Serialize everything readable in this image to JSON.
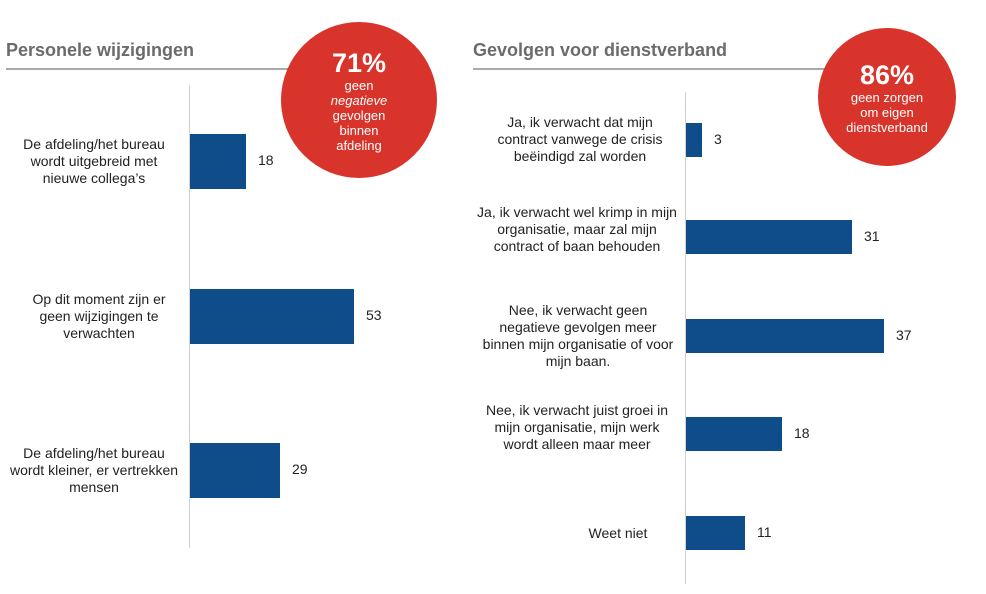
{
  "colors": {
    "bar": "#0f4c8a",
    "bubble": "#d9342b"
  },
  "left": {
    "title": "Personele wijzigingen",
    "bubble": {
      "value": "71%",
      "line1": "geen",
      "line2": "negatieve",
      "line3": "gevolgen\nbinnen\nafdeling"
    }
  },
  "right": {
    "title": "Gevolgen voor dienstverband",
    "bubble": {
      "value": "86%",
      "text": "geen zorgen\nom eigen\ndienstverband"
    }
  },
  "chart_data": [
    {
      "type": "bar",
      "orientation": "horizontal",
      "title": "Personele wijzigingen",
      "categories": [
        "De afdeling/het bureau wordt uitgebreid met nieuwe collega’s",
        "Op dit moment zijn er geen wijzigingen te verwachten",
        "De afdeling/het bureau wordt kleiner, er vertrekken mensen"
      ],
      "values": [
        18,
        53,
        29
      ],
      "xlim": [
        0,
        100
      ],
      "grid": false
    },
    {
      "type": "bar",
      "orientation": "horizontal",
      "title": "Gevolgen voor dienstverband",
      "categories": [
        "Ja, ik verwacht dat mijn contract vanwege de crisis beëindigd zal worden",
        "Ja, ik verwacht wel krimp in mijn organisatie, maar zal mijn contract of baan behouden",
        "Nee, ik verwacht geen negatieve gevolgen meer binnen mijn organisatie of voor mijn baan.",
        "Nee, ik verwacht juist groei in mijn organisatie, mijn werk wordt alleen maar meer",
        "Weet niet"
      ],
      "values": [
        3,
        31,
        37,
        18,
        11
      ],
      "xlim": [
        0,
        100
      ],
      "grid": false
    }
  ]
}
